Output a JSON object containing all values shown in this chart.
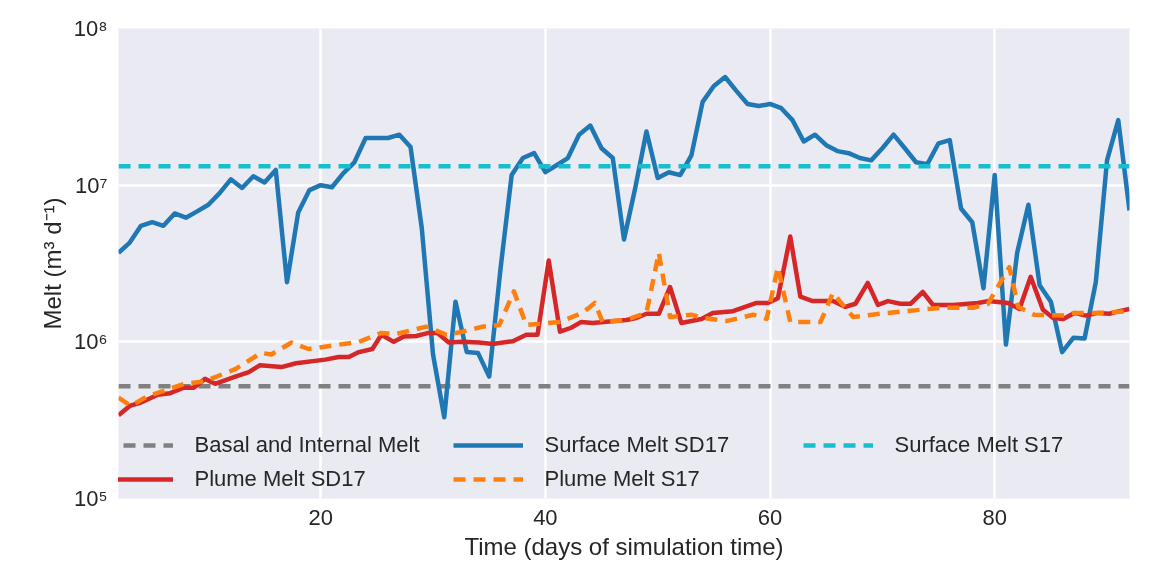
{
  "chart_data": {
    "type": "line",
    "xlabel": "Time (days of simulation time)",
    "ylabel": "Melt (m³ d⁻¹)",
    "log": "y",
    "grid": true,
    "legend": "bottom",
    "xlim": [
      2,
      92
    ],
    "xticks": [
      20,
      40,
      60,
      80
    ],
    "ylim": [
      100000,
      100000000
    ],
    "yticks": [
      {
        "value": 100000,
        "label": "10⁵"
      },
      {
        "value": 1000000,
        "label": "10⁶"
      },
      {
        "value": 10000000,
        "label": "10⁷"
      },
      {
        "value": 100000000,
        "label": "10⁸"
      }
    ],
    "series": [
      {
        "name": "Basal and Internal Melt",
        "color": "#808080",
        "line_style": "dashed",
        "x": [
          2,
          92
        ],
        "values": [
          520000,
          520000
        ]
      },
      {
        "name": "Surface Melt SD17",
        "color": "#1f77b4",
        "line_style": "solid",
        "x": [
          2,
          3,
          4,
          5,
          6,
          7,
          8,
          9,
          10,
          11,
          12,
          13,
          14,
          15,
          16,
          17,
          18,
          19,
          20,
          21,
          22,
          23,
          24,
          25,
          26,
          27,
          28,
          29,
          30,
          31,
          32,
          33,
          34,
          35,
          36,
          37,
          38,
          39,
          40,
          41,
          42,
          43,
          44,
          45,
          46,
          47,
          48,
          49,
          50,
          51,
          52,
          53,
          54,
          55,
          56,
          57,
          58,
          59,
          60,
          61,
          62,
          63,
          64,
          65,
          66,
          67,
          68,
          69,
          70,
          71,
          72,
          73,
          74,
          75,
          76,
          77,
          78,
          79,
          80,
          81,
          82,
          83,
          84,
          85,
          86,
          87,
          88,
          89,
          90,
          91,
          92
        ],
        "values": [
          3700000,
          4300000,
          5500000,
          5800000,
          5500000,
          6600000,
          6200000,
          6800000,
          7500000,
          8900000,
          10900000,
          9600000,
          11400000,
          10400000,
          12500000,
          2400000,
          6700000,
          9300000,
          10000000,
          9700000,
          11900000,
          14000000,
          20000000,
          20000000,
          20000000,
          21000000,
          17500000,
          5300000,
          830000,
          330000,
          1800000,
          860000,
          850000,
          600000,
          2900000,
          11600000,
          14900000,
          16000000,
          12100000,
          13400000,
          14900000,
          21000000,
          24000000,
          17200000,
          14900000,
          4500000,
          9600000,
          22000000,
          11100000,
          12100000,
          11600000,
          15500000,
          34000000,
          43000000,
          49000000,
          40000000,
          33000000,
          32000000,
          33000000,
          31000000,
          26000000,
          19000000,
          21000000,
          18000000,
          16500000,
          16000000,
          14900000,
          14400000,
          17200000,
          21000000,
          17200000,
          14000000,
          13600000,
          18500000,
          19400000,
          7100000,
          5800000,
          2200000,
          11600000,
          960000,
          3700000,
          7500000,
          2300000,
          1800000,
          860000,
          1060000,
          1050000,
          2400000,
          14400000,
          26000000,
          6900000
        ]
      },
      {
        "name": "Surface Melt S17",
        "color": "#17becf",
        "line_style": "dashed",
        "x": [
          2,
          92
        ],
        "values": [
          13200000,
          13200000
        ]
      },
      {
        "name": "Plume Melt SD17",
        "color": "#d62728",
        "line_style": "solid",
        "x": [
          2,
          3,
          4,
          5.5,
          6.6,
          7.8,
          8.7,
          9.7,
          10.6,
          12.4,
          13.6,
          14.6,
          16.5,
          17.8,
          20.4,
          21.6,
          22.5,
          23.4,
          24.6,
          25.4,
          26.5,
          27.4,
          28.5,
          29.6,
          30.4,
          31.4,
          32.6,
          34.1,
          35.3,
          37.1,
          38.3,
          39.3,
          40.3,
          41.3,
          42.3,
          43.2,
          44.2,
          47.2,
          48.1,
          49,
          50.1,
          51.1,
          52.1,
          53.9,
          54.9,
          56.7,
          58.8,
          59.8,
          60.7,
          61.8,
          62.7,
          63.8,
          65.6,
          66.7,
          67.6,
          68.7,
          69.6,
          70.5,
          71.6,
          72.5,
          73.6,
          74.5,
          76.3,
          78.5,
          79.4,
          81.2,
          82.2,
          83.2,
          84.3,
          85.2,
          86.1,
          87.1,
          88.1,
          89.2,
          90.2,
          91.1,
          92
        ],
        "values": [
          340000,
          390000,
          410000,
          460000,
          470000,
          510000,
          510000,
          580000,
          540000,
          600000,
          640000,
          710000,
          690000,
          730000,
          770000,
          800000,
          800000,
          860000,
          900000,
          1110000,
          1000000,
          1080000,
          1090000,
          1140000,
          1140000,
          990000,
          1000000,
          990000,
          970000,
          1010000,
          1110000,
          1110000,
          3300000,
          1160000,
          1230000,
          1340000,
          1320000,
          1380000,
          1420000,
          1510000,
          1510000,
          2240000,
          1320000,
          1400000,
          1530000,
          1570000,
          1770000,
          1770000,
          1900000,
          4700000,
          1940000,
          1820000,
          1820000,
          1670000,
          1750000,
          2380000,
          1720000,
          1820000,
          1750000,
          1750000,
          2080000,
          1720000,
          1720000,
          1770000,
          1820000,
          1770000,
          1620000,
          2600000,
          1600000,
          1420000,
          1400000,
          1530000,
          1470000,
          1530000,
          1510000,
          1570000,
          1620000
        ]
      },
      {
        "name": "Plume Melt S17",
        "color": "#ff7f0e",
        "line_style": "dashed",
        "x": [
          2,
          3.1,
          4.6,
          7.9,
          9.7,
          12.4,
          14.7,
          15.6,
          17.4,
          18.9,
          23.4,
          25.4,
          26.7,
          29.4,
          31.2,
          32.6,
          34.4,
          35.9,
          37.2,
          38.3,
          41.3,
          43.3,
          44.4,
          45.1,
          47.2,
          49,
          50.1,
          51.1,
          53,
          54,
          56.2,
          58.5,
          59.7,
          60.7,
          61.8,
          64.5,
          65.6,
          67.4,
          69.8,
          75.2,
          78.1,
          79.4,
          81.3,
          82.1,
          83.5,
          86.2,
          87.1,
          89.2,
          92
        ],
        "values": [
          440000,
          390000,
          450000,
          540000,
          560000,
          670000,
          850000,
          830000,
          990000,
          900000,
          1000000,
          1140000,
          1120000,
          1250000,
          1110000,
          1160000,
          1250000,
          1280000,
          2100000,
          1280000,
          1340000,
          1530000,
          1770000,
          1340000,
          1380000,
          1530000,
          3700000,
          1440000,
          1490000,
          1420000,
          1360000,
          1490000,
          1400000,
          3000000,
          1340000,
          1340000,
          2050000,
          1440000,
          1510000,
          1650000,
          1650000,
          1750000,
          3000000,
          1670000,
          1490000,
          1470000,
          1530000,
          1530000,
          1570000
        ]
      }
    ]
  }
}
